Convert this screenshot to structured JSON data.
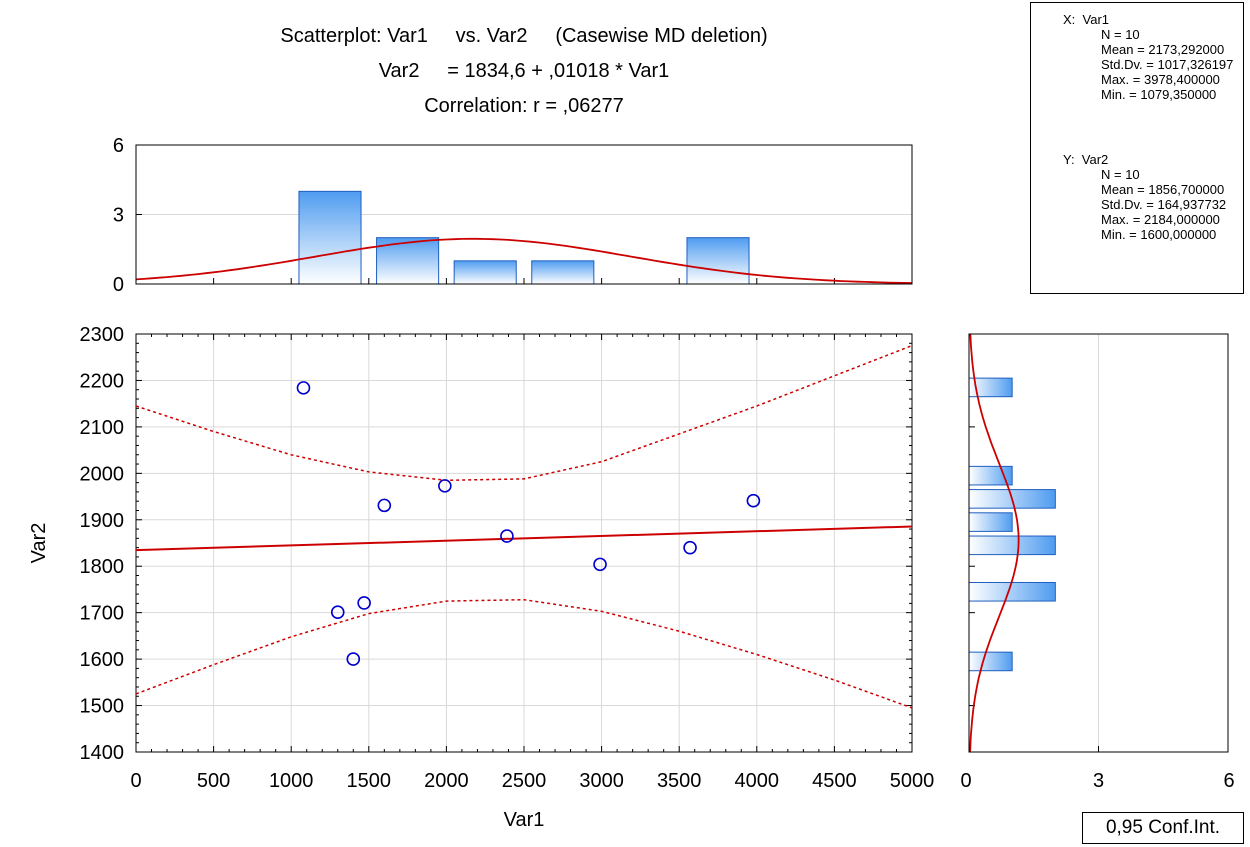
{
  "header": {
    "title_line1": "Scatterplot: Var1     vs. Var2     (Casewise MD deletion)",
    "title_line2": "Var2     = 1834,6 + ,01018 * Var1",
    "title_line3": "Correlation: r = ,06277"
  },
  "stats": {
    "x_header": "X:  Var1",
    "x_n": "N = 10",
    "x_mean": "Mean = 2173,292000",
    "x_std": "Std.Dv. = 1017,326197",
    "x_max": "Max. = 3978,400000",
    "x_min": "Min. = 1079,350000",
    "y_header": "Y:  Var2",
    "y_n": "N = 10",
    "y_mean": "Mean = 1856,700000",
    "y_std": "Std.Dv. = 164,937732",
    "y_max": "Max. = 2184,000000",
    "y_min": "Min. = 1600,000000"
  },
  "legend": {
    "conf_label": "0,95 Conf.Int."
  },
  "colors": {
    "fit_line": "#cc0000",
    "points": "#0000cc",
    "bar_fill_top": "#4f9cf0",
    "bar_fill_bottom": "#ffffff",
    "bar_stroke": "#1f5fbf",
    "grid": "#d9d9d9"
  },
  "chart_data": {
    "type": "scatter",
    "xlabel": "Var1",
    "ylabel": "Var2",
    "xlim": [
      0,
      5000
    ],
    "ylim": [
      1400,
      2300
    ],
    "xticks": [
      0,
      500,
      1000,
      1500,
      2000,
      2500,
      3000,
      3500,
      4000,
      4500,
      5000
    ],
    "yticks": [
      1400,
      1500,
      1600,
      1700,
      1800,
      1900,
      2000,
      2100,
      2200,
      2300
    ],
    "points": [
      {
        "x": 1079,
        "y": 2184
      },
      {
        "x": 1300,
        "y": 1701
      },
      {
        "x": 1400,
        "y": 1600
      },
      {
        "x": 1470,
        "y": 1721
      },
      {
        "x": 1600,
        "y": 1931
      },
      {
        "x": 1990,
        "y": 1973
      },
      {
        "x": 2390,
        "y": 1865
      },
      {
        "x": 2990,
        "y": 1804
      },
      {
        "x": 3570,
        "y": 1840
      },
      {
        "x": 3978,
        "y": 1941
      }
    ],
    "regression": {
      "intercept": 1834.6,
      "slope": 0.01018
    },
    "confidence_band": {
      "x": [
        0,
        500,
        1000,
        1500,
        2000,
        2500,
        3000,
        3500,
        4000,
        4500,
        5000
      ],
      "upper": [
        2145,
        2090,
        2040,
        2003,
        1985,
        1988,
        2025,
        2085,
        2145,
        2210,
        2275
      ],
      "lower": [
        1525,
        1588,
        1648,
        1698,
        1725,
        1728,
        1703,
        1660,
        1610,
        1555,
        1495
      ]
    },
    "x_histogram": {
      "yticks": [
        0,
        3,
        6
      ],
      "ylim": [
        0,
        6
      ],
      "bins": [
        {
          "from": 1050,
          "to": 1450,
          "count": 4
        },
        {
          "from": 1550,
          "to": 1950,
          "count": 2
        },
        {
          "from": 2050,
          "to": 2450,
          "count": 1
        },
        {
          "from": 2550,
          "to": 2950,
          "count": 1
        },
        {
          "from": 3550,
          "to": 3950,
          "count": 2
        }
      ],
      "normal_curve": {
        "mean": 2173.292,
        "sd": 1017.326,
        "peak": 1.95
      }
    },
    "y_histogram": {
      "xticks": [
        0,
        3,
        6
      ],
      "xlim": [
        0,
        6
      ],
      "bins": [
        {
          "from": 1575,
          "to": 1615,
          "count": 1
        },
        {
          "from": 1725,
          "to": 1765,
          "count": 2
        },
        {
          "from": 1825,
          "to": 1865,
          "count": 2
        },
        {
          "from": 1875,
          "to": 1915,
          "count": 1
        },
        {
          "from": 1925,
          "to": 1965,
          "count": 2
        },
        {
          "from": 1975,
          "to": 2015,
          "count": 1
        },
        {
          "from": 2165,
          "to": 2205,
          "count": 1
        }
      ],
      "normal_curve": {
        "mean": 1856.7,
        "sd": 164.94,
        "peak": 1.15
      }
    }
  }
}
